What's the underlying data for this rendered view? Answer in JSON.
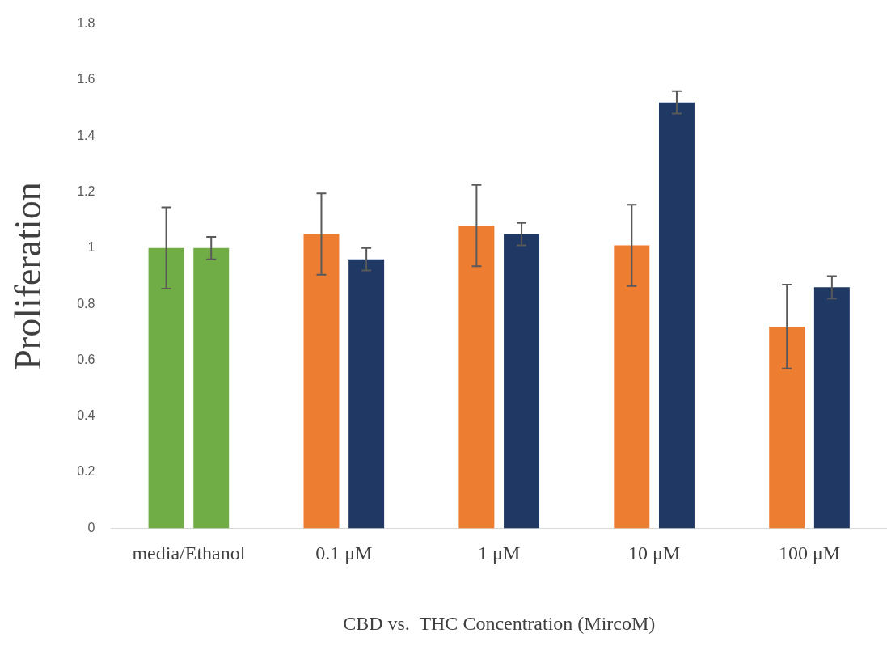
{
  "chart_data": {
    "type": "bar",
    "xlabel": "CBD vs.  THC Concentration (MircoM)",
    "ylabel": "Proliferation",
    "categories": [
      "media/Ethanol",
      "0.1 μM",
      "1 μM",
      "10 μM",
      "100 μM"
    ],
    "series": [
      {
        "colors": [
          "#70ad47",
          "#ed7d31",
          "#ed7d31",
          "#ed7d31",
          "#ed7d31"
        ],
        "values": [
          1.0,
          1.05,
          1.08,
          1.01,
          0.72
        ],
        "errors": [
          0.145,
          0.145,
          0.145,
          0.145,
          0.15
        ]
      },
      {
        "colors": [
          "#70ad47",
          "#1f3864",
          "#1f3864",
          "#1f3864",
          "#1f3864"
        ],
        "values": [
          1.0,
          0.96,
          1.05,
          1.52,
          0.86
        ],
        "errors": [
          0.04,
          0.04,
          0.04,
          0.04,
          0.04
        ]
      }
    ],
    "ylim": [
      0,
      1.8
    ],
    "yticks": [
      0,
      0.2,
      0.4,
      0.6,
      0.8,
      1,
      1.2,
      1.4,
      1.6,
      1.8
    ],
    "legend": false
  }
}
